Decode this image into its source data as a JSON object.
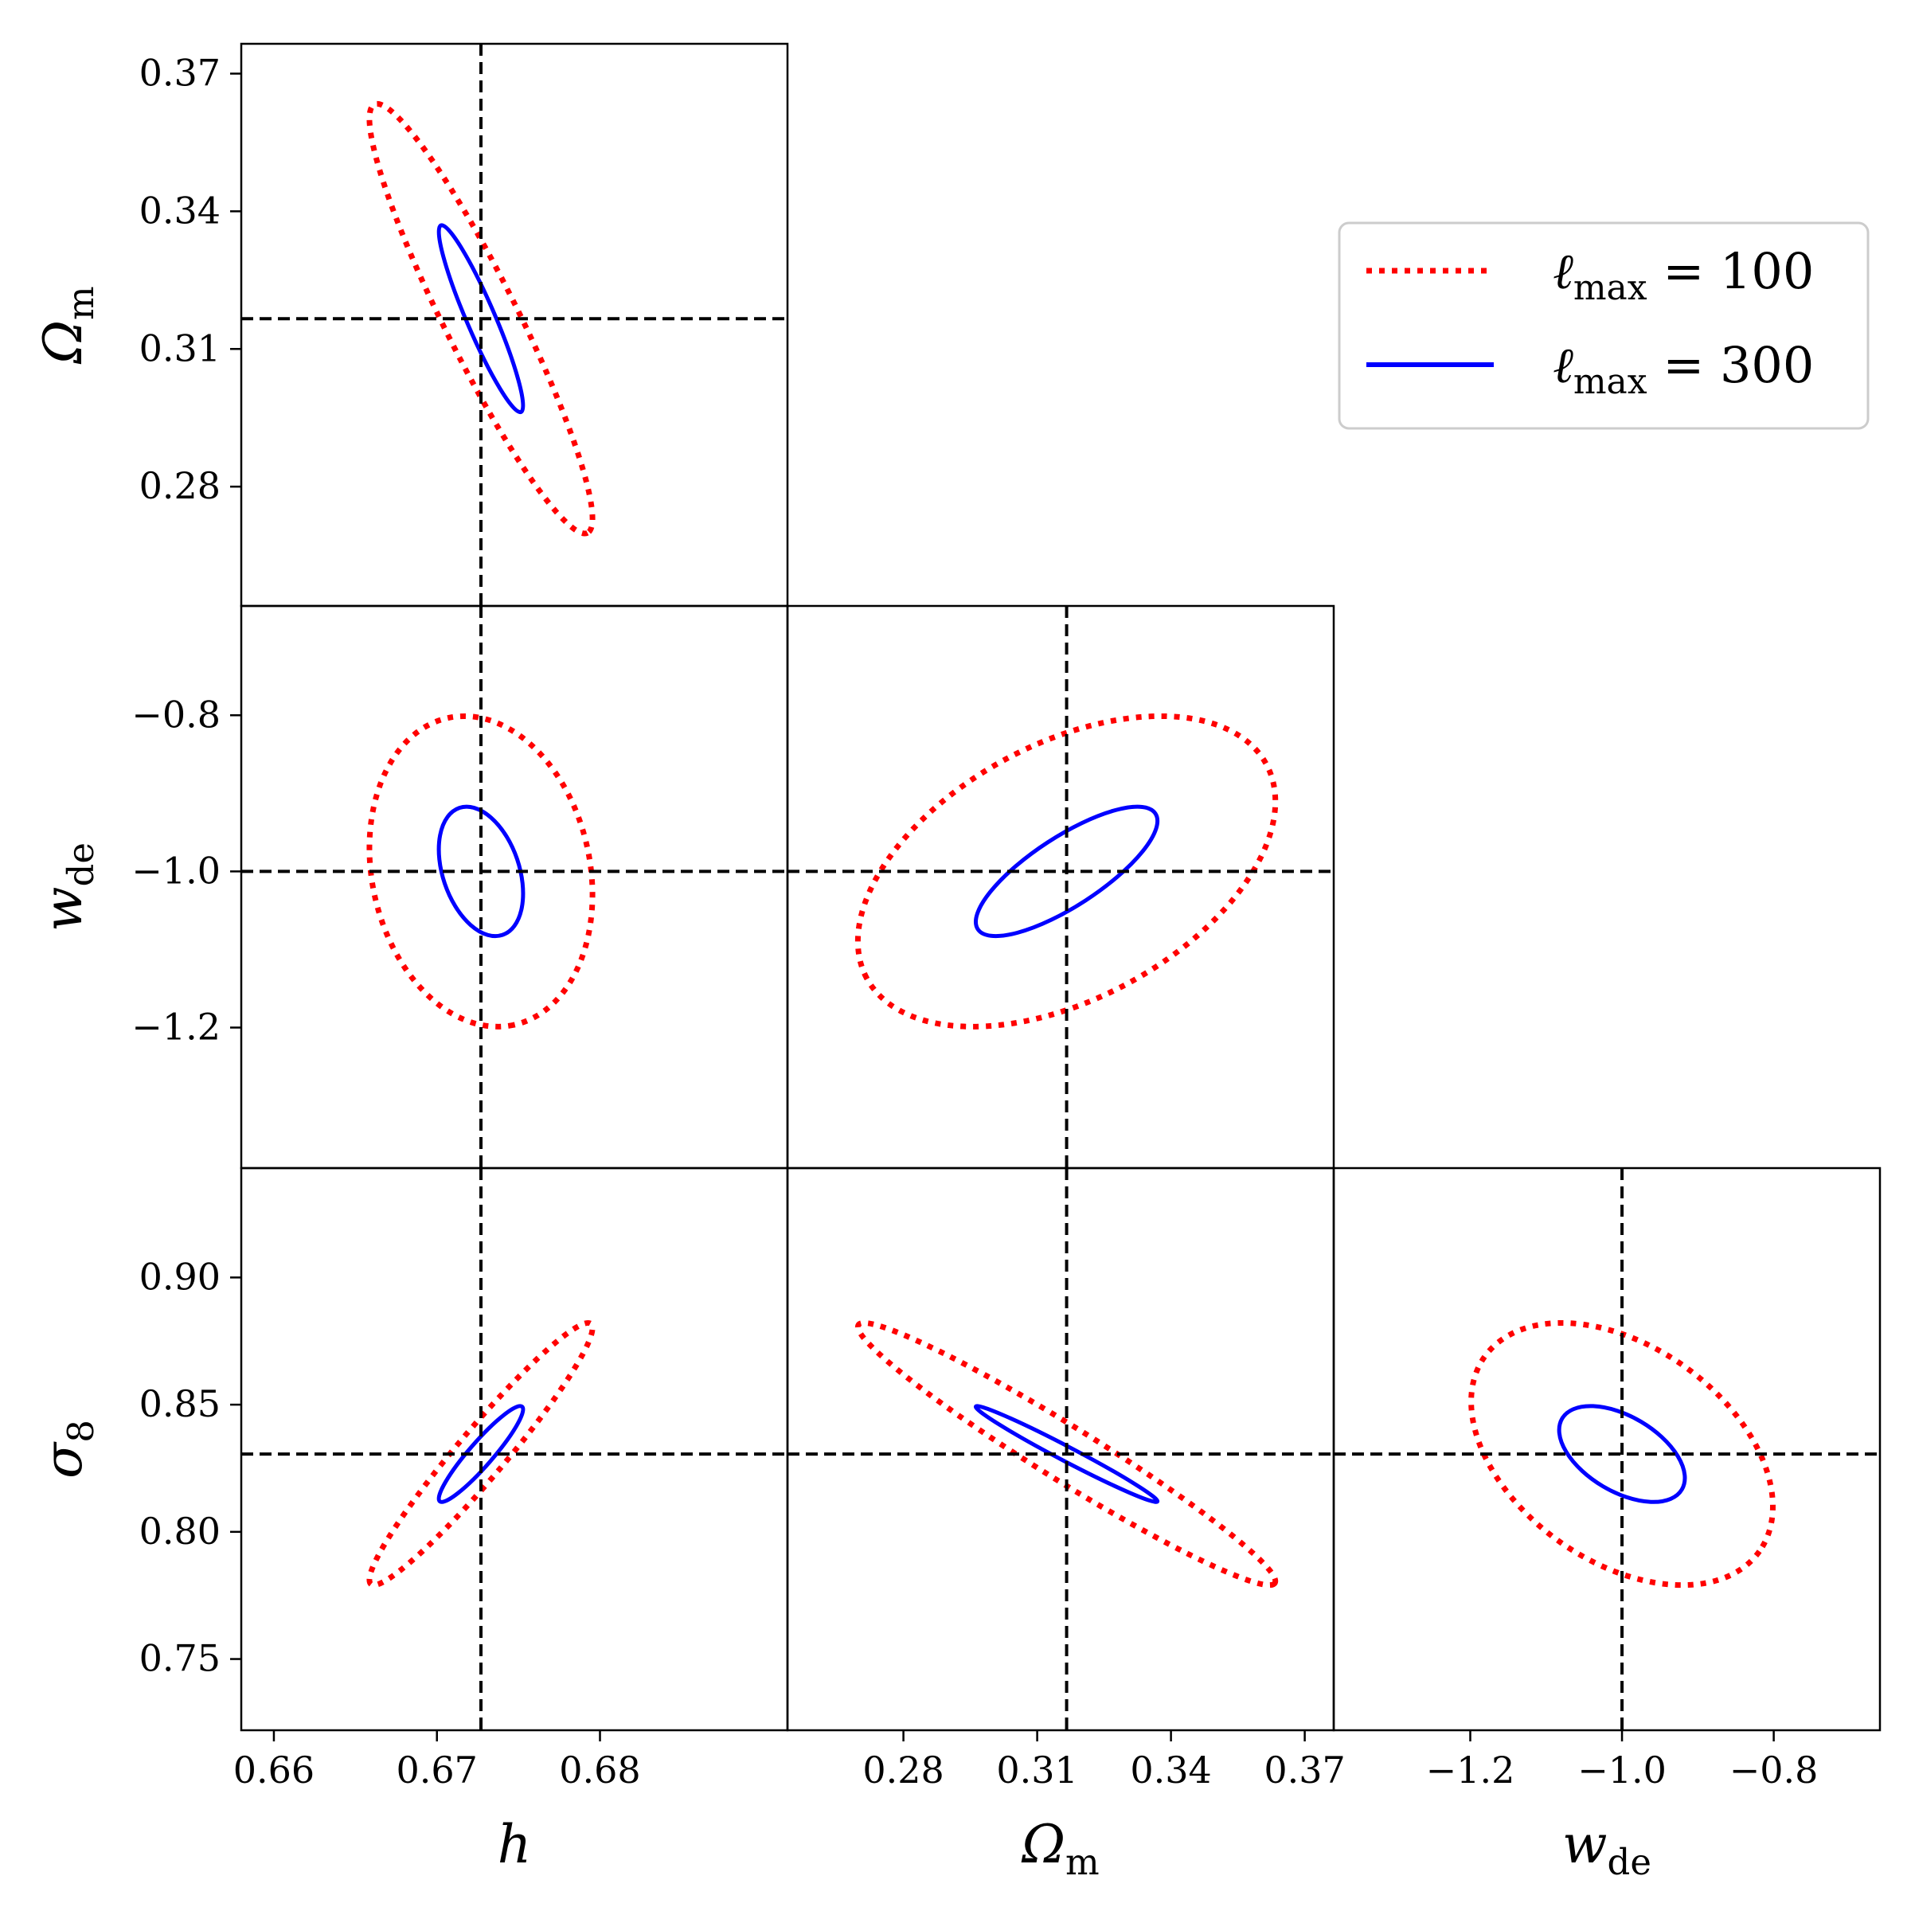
{
  "chart_data": {
    "type": "corner-contour",
    "title": "",
    "parameters": [
      {
        "key": "h",
        "label": "h",
        "sub": "",
        "fid": 0.6727,
        "range": [
          0.658,
          0.6915
        ],
        "ticks": [
          "0.66",
          "0.67",
          "0.68"
        ],
        "tick_values": [
          0.66,
          0.67,
          0.68
        ]
      },
      {
        "key": "Om",
        "label": "Ω",
        "sub": "m",
        "fid": 0.3166,
        "range": [
          0.254,
          0.3765
        ],
        "ticks": [
          "0.28",
          "0.31",
          "0.34",
          "0.37"
        ],
        "tick_values": [
          0.28,
          0.31,
          0.34,
          0.37
        ]
      },
      {
        "key": "wde",
        "label": "w",
        "sub": "de",
        "fid": -1.0,
        "range": [
          -1.38,
          -0.66
        ],
        "ticks": [
          "−1.2",
          "−1.0",
          "−0.8"
        ],
        "tick_values": [
          -1.2,
          -1.0,
          -0.8
        ]
      },
      {
        "key": "s8",
        "label": "σ",
        "sub": "8",
        "fid": 0.8306,
        "range": [
          0.722,
          0.943
        ],
        "ticks": [
          "0.75",
          "0.80",
          "0.85",
          "0.90"
        ],
        "tick_values": [
          0.75,
          0.8,
          0.85,
          0.9
        ]
      }
    ],
    "panels": [
      {
        "x": "h",
        "y": "Om",
        "ellipses": [
          {
            "series": "lmax100",
            "cx": 0.6727,
            "cy": 0.3166,
            "sx": 0.0045,
            "sy": 0.0308,
            "rho": -0.93
          },
          {
            "series": "lmax300",
            "cx": 0.6727,
            "cy": 0.3166,
            "sx": 0.0017,
            "sy": 0.0134,
            "rho": -0.93
          }
        ]
      },
      {
        "x": "h",
        "y": "wde",
        "ellipses": [
          {
            "series": "lmax100",
            "cx": 0.6727,
            "cy": -1.0,
            "sx": 0.0045,
            "sy": 0.1308,
            "rho": -0.15
          },
          {
            "series": "lmax300",
            "cx": 0.6727,
            "cy": -1.0,
            "sx": 0.0017,
            "sy": 0.0545,
            "rho": -0.34
          }
        ]
      },
      {
        "x": "Om",
        "y": "wde",
        "ellipses": [
          {
            "series": "lmax100",
            "cx": 0.3166,
            "cy": -1.0,
            "sx": 0.0308,
            "sy": 0.1308,
            "rho": 0.45
          },
          {
            "series": "lmax300",
            "cx": 0.3166,
            "cy": -1.0,
            "sx": 0.0134,
            "sy": 0.0545,
            "rho": 0.78
          }
        ]
      },
      {
        "x": "h",
        "y": "s8",
        "ellipses": [
          {
            "series": "lmax100",
            "cx": 0.6727,
            "cy": 0.8306,
            "sx": 0.0045,
            "sy": 0.0339,
            "rho": 0.96
          },
          {
            "series": "lmax300",
            "cx": 0.6727,
            "cy": 0.8306,
            "sx": 0.0017,
            "sy": 0.0124,
            "rho": 0.93
          }
        ]
      },
      {
        "x": "Om",
        "y": "s8",
        "ellipses": [
          {
            "series": "lmax100",
            "cx": 0.3166,
            "cy": 0.8306,
            "sx": 0.0308,
            "sy": 0.0339,
            "rho": -0.97
          },
          {
            "series": "lmax300",
            "cx": 0.3166,
            "cy": 0.8306,
            "sx": 0.0134,
            "sy": 0.0124,
            "rho": -0.985
          }
        ]
      },
      {
        "x": "wde",
        "y": "s8",
        "ellipses": [
          {
            "series": "lmax100",
            "cx": -1.0,
            "cy": 0.8306,
            "sx": 0.1308,
            "sy": 0.0339,
            "rho": -0.4
          },
          {
            "series": "lmax300",
            "cx": -1.0,
            "cy": 0.8306,
            "sx": 0.0545,
            "sy": 0.0124,
            "rho": -0.5
          }
        ]
      }
    ],
    "series": [
      {
        "key": "lmax100",
        "ell": "ℓ",
        "sub": "max",
        "value": " = 100",
        "color": "#ff0000",
        "style": "dotted"
      },
      {
        "key": "lmax300",
        "ell": "ℓ",
        "sub": "max",
        "value": " = 300",
        "color": "#0000ff",
        "style": "solid"
      }
    ],
    "fiducial_line": {
      "color": "#000000",
      "style": "dashed"
    },
    "legend_position": "upper-right",
    "grid": false
  }
}
